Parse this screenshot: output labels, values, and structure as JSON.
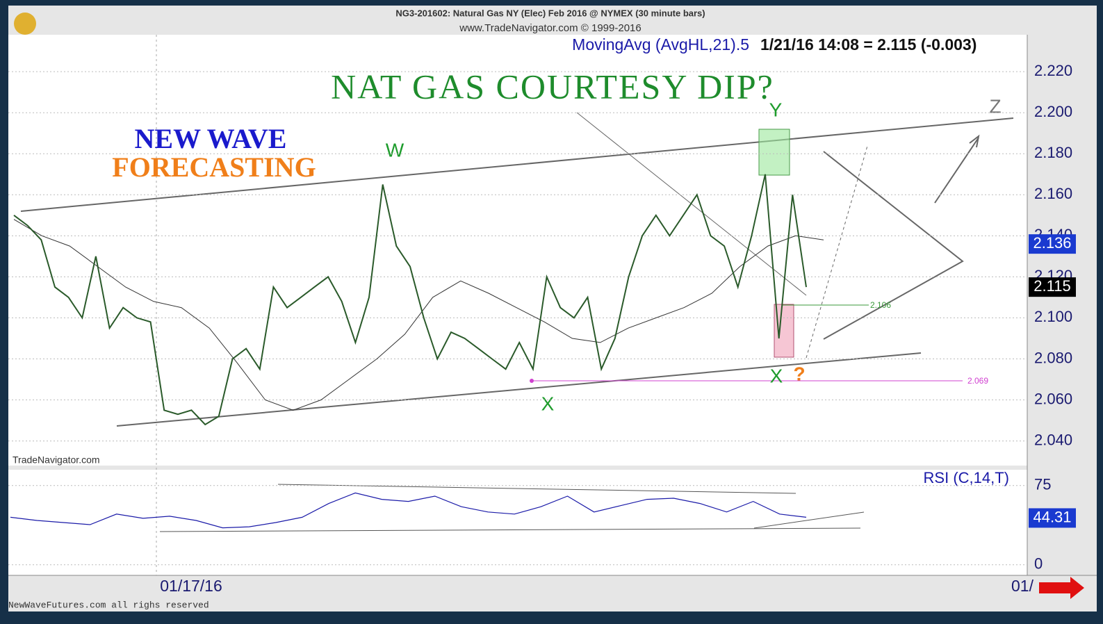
{
  "chart_data": {
    "type": "line",
    "title": "NG3-201602: Natural Gas NY (Elec) Feb 2016 @ NYMEX  (30 minute bars)",
    "subtitle": "www.TradeNavigator.com © 1999-2016",
    "indicator_label": "MovingAvg (AvgHL,21).5",
    "quote_label": "1/21/16 14:08 = 2.115 (-0.003)",
    "headline": "NAT GAS COURTESY DIP?",
    "logo_line1": "NEW WAVE",
    "logo_line2": "FORECASTING",
    "watermark": "TradeNavigator.com",
    "footer": "NewWaveFutures.com all righs reserved",
    "wave_labels": [
      "W",
      "X",
      "Y",
      "X",
      "Z",
      "?"
    ],
    "xlabels": [
      "01/17/16",
      "01/"
    ],
    "ylim": [
      2.028,
      2.238
    ],
    "yticks": [
      {
        "value": 2.22,
        "label": "2.220"
      },
      {
        "value": 2.2,
        "label": "2.200"
      },
      {
        "value": 2.18,
        "label": "2.180"
      },
      {
        "value": 2.16,
        "label": "2.160"
      },
      {
        "value": 2.14,
        "label": "2.140"
      },
      {
        "value": 2.12,
        "label": "2.120"
      },
      {
        "value": 2.1,
        "label": "2.100"
      },
      {
        "value": 2.08,
        "label": "2.080"
      },
      {
        "value": 2.06,
        "label": "2.060"
      },
      {
        "value": 2.04,
        "label": "2.040"
      }
    ],
    "grid": true,
    "series": [
      {
        "name": "Price",
        "color": "#2a5a2a",
        "values": [
          2.15,
          2.145,
          2.138,
          2.115,
          2.11,
          2.1,
          2.13,
          2.095,
          2.105,
          2.1,
          2.098,
          2.055,
          2.053,
          2.055,
          2.048,
          2.052,
          2.08,
          2.085,
          2.075,
          2.115,
          2.105,
          2.11,
          2.115,
          2.12,
          2.108,
          2.088,
          2.11,
          2.165,
          2.135,
          2.125,
          2.1,
          2.08,
          2.093,
          2.09,
          2.085,
          2.08,
          2.075,
          2.088,
          2.075,
          2.12,
          2.105,
          2.1,
          2.11,
          2.075,
          2.09,
          2.12,
          2.14,
          2.15,
          2.14,
          2.15,
          2.16,
          2.14,
          2.135,
          2.115,
          2.14,
          2.17,
          2.09,
          2.16,
          2.115
        ]
      },
      {
        "name": "MovingAvg",
        "color": "#333333",
        "values": [
          2.148,
          2.14,
          2.135,
          2.125,
          2.115,
          2.108,
          2.105,
          2.095,
          2.078,
          2.06,
          2.055,
          2.06,
          2.07,
          2.08,
          2.092,
          2.11,
          2.118,
          2.112,
          2.105,
          2.098,
          2.09,
          2.088,
          2.095,
          2.1,
          2.105,
          2.112,
          2.125,
          2.135,
          2.14,
          2.138
        ]
      }
    ],
    "last_price": 2.115,
    "last_ma": 2.136,
    "level_labels": [
      2.106,
      2.069
    ],
    "rsi": {
      "label": "RSI (C,14,T)",
      "ylim": [
        -10,
        90
      ],
      "yticks": [
        75,
        0
      ],
      "values": [
        45,
        42,
        40,
        38,
        48,
        44,
        46,
        42,
        35,
        36,
        40,
        45,
        58,
        68,
        62,
        60,
        65,
        55,
        50,
        48,
        55,
        65,
        50,
        56,
        62,
        63,
        58,
        50,
        60,
        48,
        45
      ],
      "last": 44.31
    }
  }
}
